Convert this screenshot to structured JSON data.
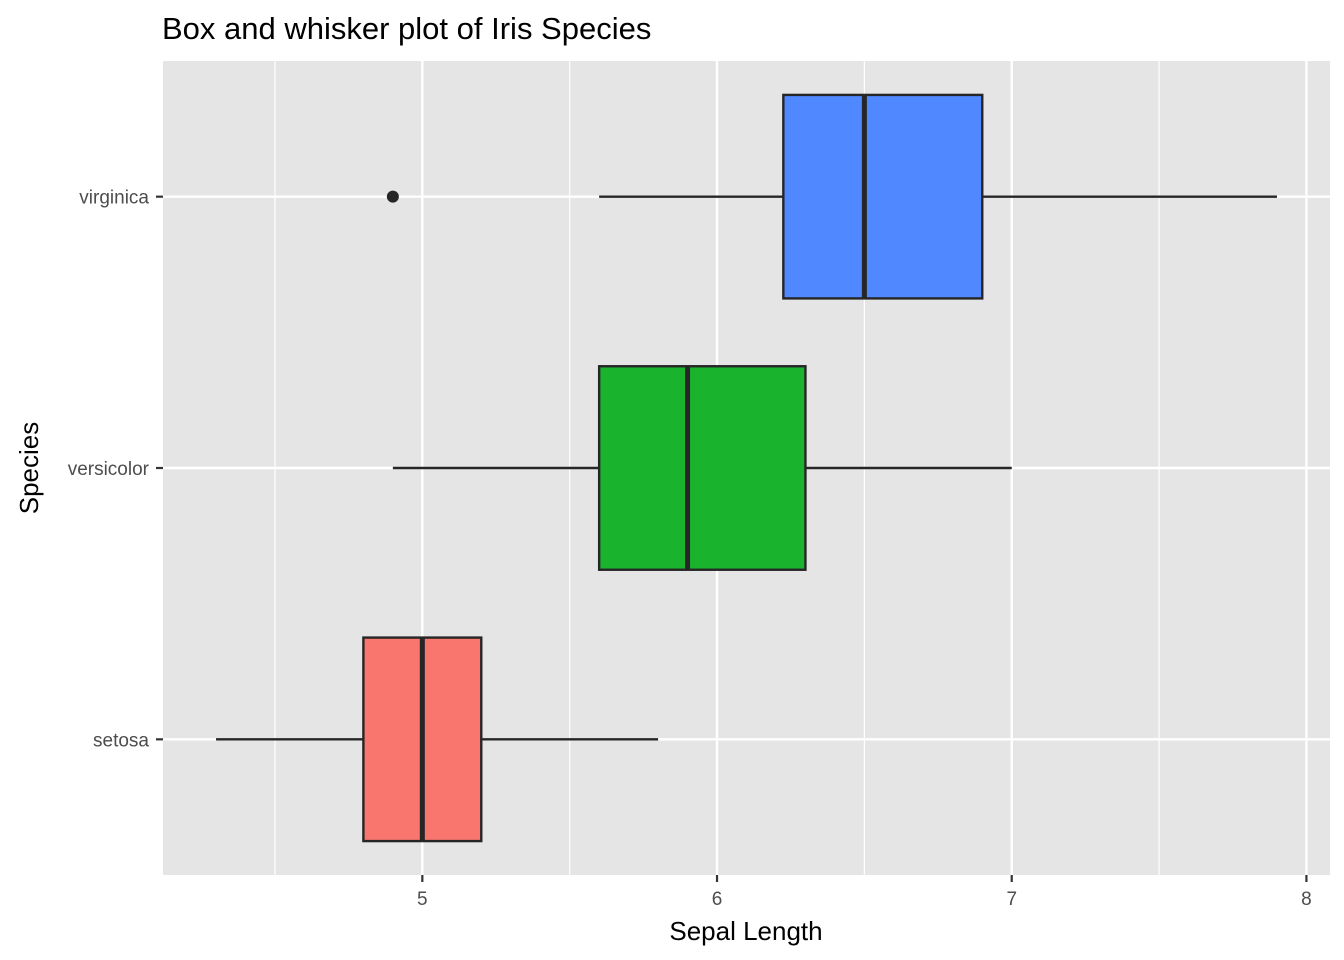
{
  "chart_data": {
    "type": "boxplot",
    "orientation": "horizontal",
    "title": "Box and whisker plot of Iris Species",
    "xlabel": "Sepal Length",
    "ylabel": "Species",
    "xlim": [
      4.12,
      8.08
    ],
    "xticks": [
      "5",
      "6",
      "7",
      "8"
    ],
    "grid": true,
    "legend": "none",
    "colors": {
      "panel": "#e5e5e5",
      "grid": "#ffffff",
      "outline": "#262626",
      "tick_text": "#4d4d4d"
    },
    "categories": [
      "setosa",
      "versicolor",
      "virginica"
    ],
    "boxes": [
      {
        "name": "setosa",
        "min": 4.3,
        "q1": 4.8,
        "median": 5.0,
        "q3": 5.2,
        "max": 5.8,
        "outliers": [],
        "color": "#f8766d"
      },
      {
        "name": "versicolor",
        "min": 4.9,
        "q1": 5.6,
        "median": 5.9,
        "q3": 6.3,
        "max": 7.0,
        "outliers": [],
        "color": "#19b32e"
      },
      {
        "name": "virginica",
        "min": 5.6,
        "q1": 6.225,
        "median": 6.5,
        "q3": 6.9,
        "max": 7.9,
        "outliers": [
          4.9
        ],
        "color": "#5088ff"
      }
    ]
  }
}
